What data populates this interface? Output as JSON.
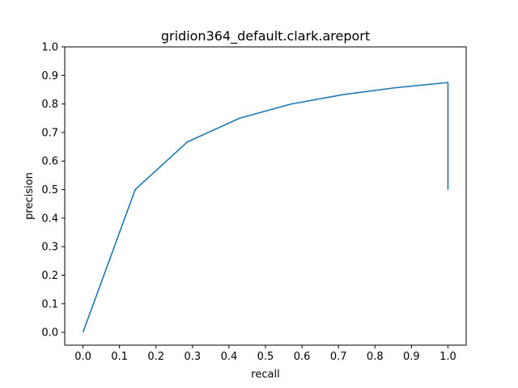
{
  "chart_data": {
    "type": "line",
    "title": "gridion364_default.clark.areport",
    "xlabel": "recall",
    "ylabel": "precision",
    "xlim": [
      -0.05,
      1.05
    ],
    "ylim": [
      -0.045,
      1.0
    ],
    "xticks": [
      "0.0",
      "0.1",
      "0.2",
      "0.3",
      "0.4",
      "0.5",
      "0.6",
      "0.7",
      "0.8",
      "0.9",
      "1.0"
    ],
    "yticks": [
      "0.0",
      "0.1",
      "0.2",
      "0.3",
      "0.4",
      "0.5",
      "0.6",
      "0.7",
      "0.8",
      "0.9",
      "1.0"
    ],
    "grid": false,
    "line_color": "#1f77b4",
    "series": [
      {
        "x": [
          0.0,
          0.143,
          0.286,
          0.429,
          0.571,
          0.714,
          0.857,
          1.0,
          1.0
        ],
        "y": [
          0.0,
          0.5,
          0.667,
          0.75,
          0.8,
          0.833,
          0.857,
          0.875,
          0.5
        ]
      }
    ]
  }
}
